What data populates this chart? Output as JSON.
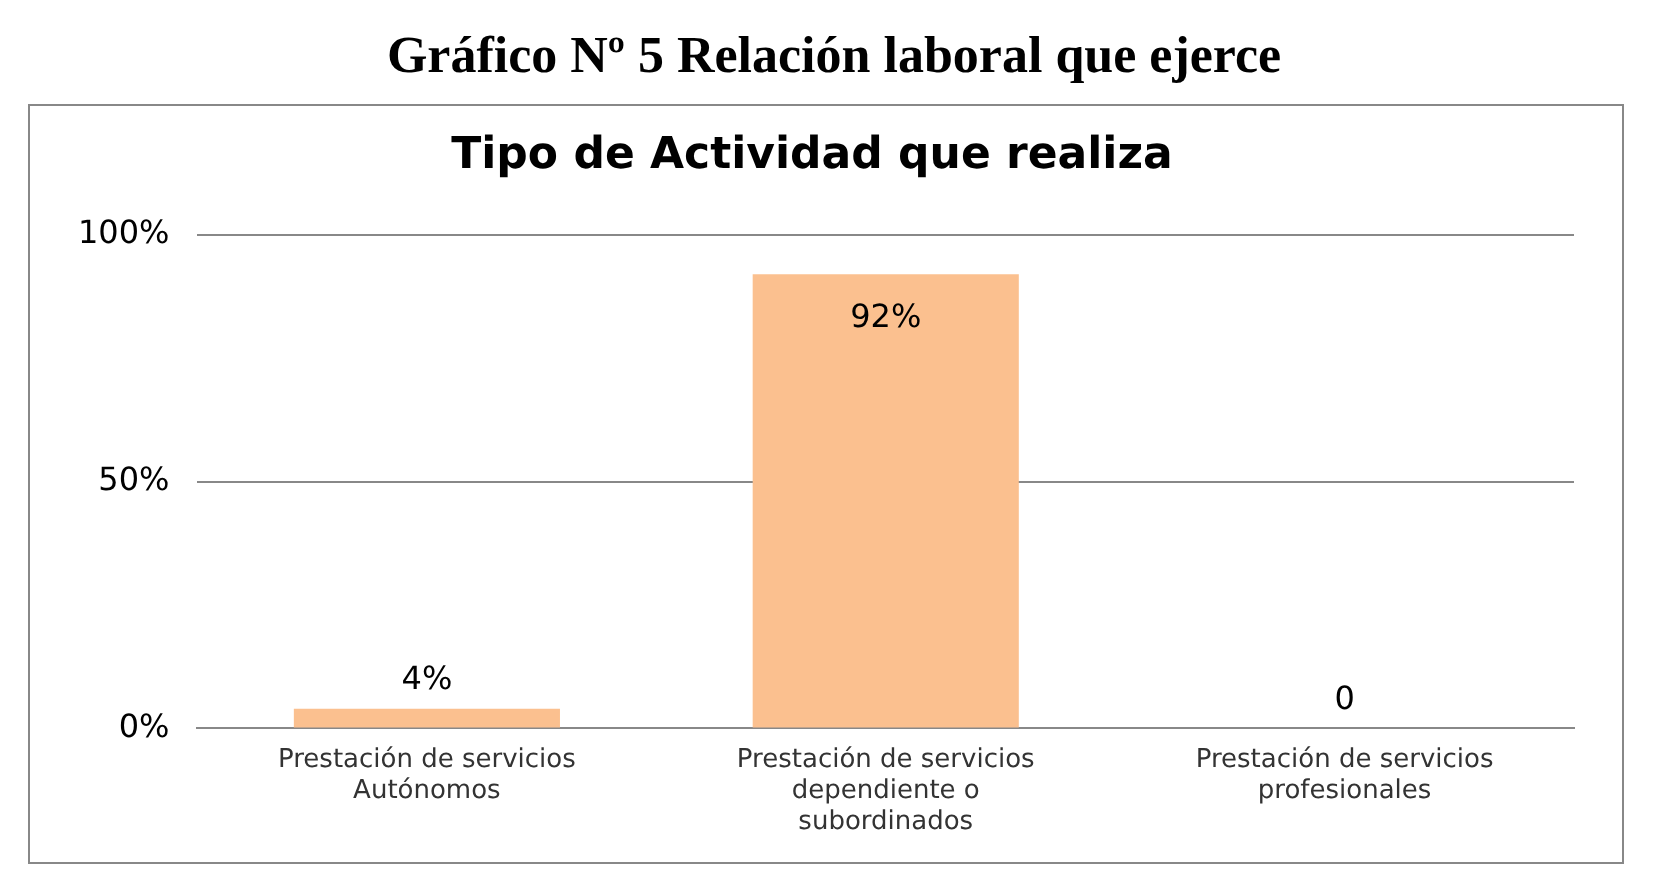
{
  "chart_data": {
    "type": "bar",
    "title": "Gráfico Nº 5 Relación laboral que ejerce",
    "subtitle": "Tipo de Actividad que realiza",
    "categories": [
      "Prestación de servicios Autónomos",
      "Prestación de servicios dependiente o subordinados",
      "Prestación de servicios profesionales"
    ],
    "values": [
      4,
      92,
      0
    ],
    "value_labels": [
      "4%",
      "92%",
      "0"
    ],
    "color": "#fbc08f",
    "ylim": [
      0,
      100
    ],
    "yticks": [
      {
        "value": 0,
        "label": "0%"
      },
      {
        "value": 50,
        "label": "50%"
      },
      {
        "value": 100,
        "label": "100%"
      }
    ],
    "grid": "y",
    "legend": false
  }
}
